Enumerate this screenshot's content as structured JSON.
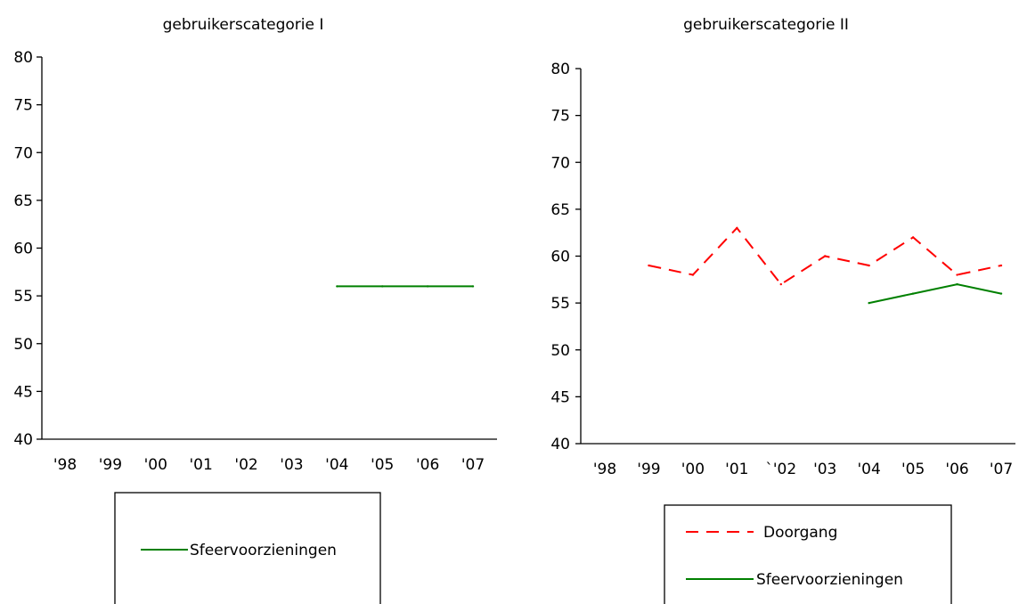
{
  "chart_data": [
    {
      "type": "line",
      "title": "gebruikerscategorie I",
      "categories": [
        "'98",
        "'99",
        "'00",
        "'01",
        "'02",
        "'03",
        "'04",
        "'05",
        "'06",
        "'07"
      ],
      "ylim": [
        40,
        80
      ],
      "yticks": [
        40,
        45,
        50,
        55,
        60,
        65,
        70,
        75,
        80
      ],
      "grid": false,
      "legend_position": "bottom",
      "series": [
        {
          "name": "Sfeervoorzieningen",
          "color": "#008000",
          "dash": "solid",
          "values": [
            null,
            null,
            null,
            null,
            null,
            null,
            56,
            56,
            56,
            56
          ]
        }
      ]
    },
    {
      "type": "line",
      "title": "gebruikerscategorie II",
      "categories": [
        "'98",
        "'99",
        "'00",
        "'01",
        "`'02",
        "'03",
        "'04",
        "'05",
        "'06",
        "'07"
      ],
      "ylim": [
        40,
        80
      ],
      "yticks": [
        40,
        45,
        50,
        55,
        60,
        65,
        70,
        75,
        80
      ],
      "grid": false,
      "legend_position": "bottom",
      "series": [
        {
          "name": "Doorgang",
          "color": "#ff0000",
          "dash": "dashed",
          "values": [
            null,
            59,
            58,
            63,
            57,
            60,
            59,
            62,
            58,
            59
          ]
        },
        {
          "name": "Sfeervoorzieningen",
          "color": "#008000",
          "dash": "solid",
          "values": [
            null,
            null,
            null,
            null,
            null,
            null,
            55,
            56,
            57,
            56
          ]
        }
      ]
    }
  ]
}
